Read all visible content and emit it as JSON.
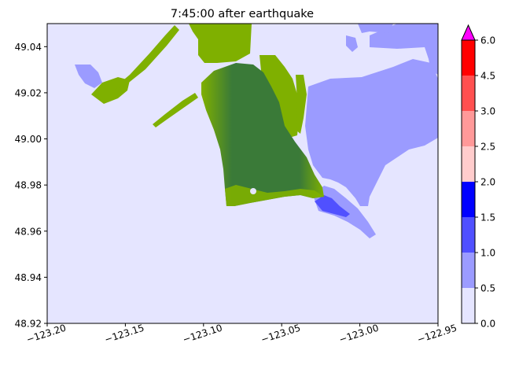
{
  "chart_data": {
    "type": "heatmap",
    "title": "7:45:00 after earthquake",
    "xlabel": "",
    "ylabel": "",
    "xlim": [
      -123.2,
      -122.95
    ],
    "ylim": [
      48.92,
      49.05
    ],
    "x_ticks": [
      -123.2,
      -123.15,
      -123.1,
      -123.05,
      -123.0,
      -122.95
    ],
    "x_tick_labels": [
      "−123.20",
      "−123.15",
      "−123.10",
      "−123.05",
      "−123.00",
      "−122.95"
    ],
    "y_ticks": [
      48.92,
      48.94,
      48.96,
      48.98,
      49.0,
      49.02,
      49.04
    ],
    "y_tick_labels": [
      "48.92",
      "48.94",
      "48.96",
      "48.98",
      "49.00",
      "49.02",
      "49.04"
    ],
    "grid": false,
    "colorbar": {
      "levels": [
        0.0,
        0.5,
        1.0,
        1.5,
        2.0,
        2.5,
        3.0,
        4.5,
        6.0
      ],
      "tick_labels": [
        "0.0",
        "0.5",
        "1.0",
        "1.5",
        "2.0",
        "2.5",
        "3.0",
        "4.5",
        "6.0"
      ],
      "colors": [
        "#e5e5ff",
        "#9b9bff",
        "#5050ff",
        "#0000ff",
        "#ffcccc",
        "#ff9999",
        "#ff5050",
        "#ff0000"
      ],
      "extend_max_color": "#ff00ff"
    },
    "colors": {
      "water_background": "#e5e5ff",
      "flooded_shallow": "#9b9bff",
      "flooded_medium": "#5050ff",
      "land_low": "#7fb000",
      "land_high": "#3a7a38"
    }
  }
}
